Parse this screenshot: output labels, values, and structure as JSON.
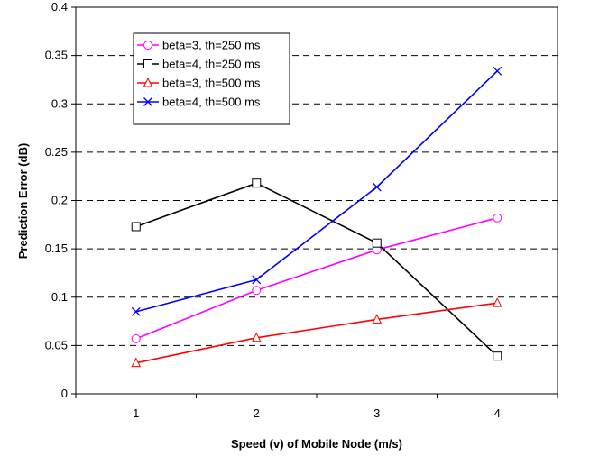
{
  "chart_data": {
    "type": "line",
    "title": "",
    "xlabel": "Speed (v) of Mobile Node (m/s)",
    "ylabel": "Prediction Error (dB)",
    "categories": [
      "1",
      "2",
      "3",
      "4"
    ],
    "x": [
      1,
      2,
      3,
      4
    ],
    "xlim": [
      0.5,
      4.5
    ],
    "ylim": [
      0,
      0.4
    ],
    "yticks": [
      "0",
      "0.05",
      "0.1",
      "0.15",
      "0.2",
      "0.25",
      "0.3",
      "0.35",
      "0.4"
    ],
    "ytick_values": [
      0,
      0.05,
      0.1,
      0.15,
      0.2,
      0.25,
      0.3,
      0.35,
      0.4
    ],
    "grid": "horizontal dashed",
    "legend_position": "top-left",
    "series": [
      {
        "name": "beta=3, th=250 ms",
        "values": [
          0.057,
          0.107,
          0.149,
          0.182
        ],
        "color": "#ff00ff",
        "marker": "circle"
      },
      {
        "name": "beta=4, th=250 ms",
        "values": [
          0.173,
          0.218,
          0.156,
          0.039
        ],
        "color": "#000000",
        "marker": "square"
      },
      {
        "name": "beta=3, th=500 ms",
        "values": [
          0.032,
          0.058,
          0.077,
          0.094
        ],
        "color": "#ff0000",
        "marker": "triangle"
      },
      {
        "name": "beta=4, th=500 ms",
        "values": [
          0.085,
          0.118,
          0.214,
          0.334
        ],
        "color": "#0000ff",
        "marker": "x"
      }
    ]
  }
}
